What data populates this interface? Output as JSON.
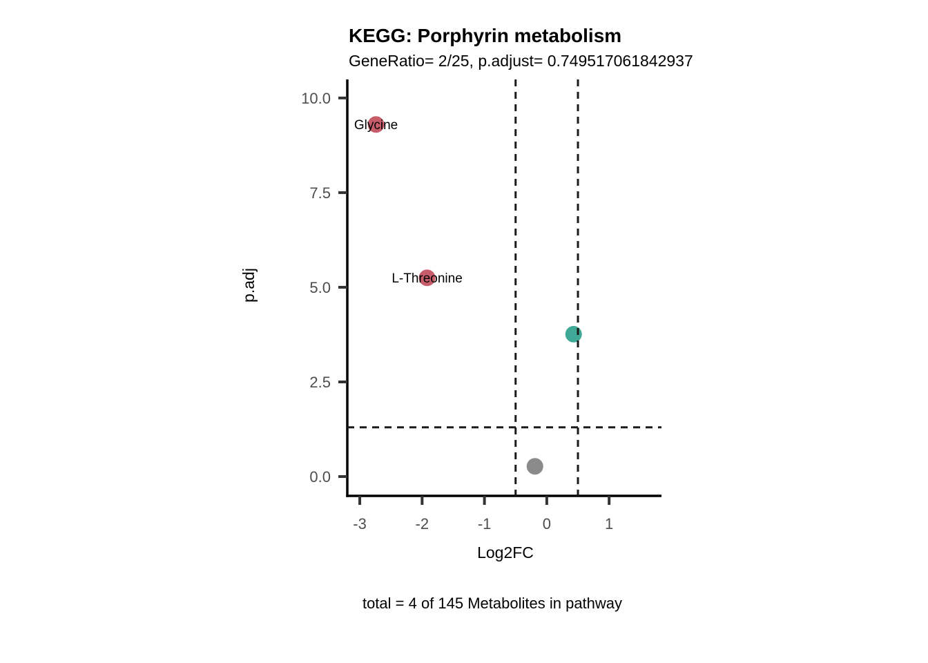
{
  "chart_data": {
    "type": "scatter",
    "title": "KEGG: Porphyrin metabolism",
    "subtitle": "GeneRatio= 2/25, p.adjust= 0.749517061842937",
    "caption": "total = 4 of 145 Metabolites in pathway",
    "xlabel": "Log2FC",
    "ylabel": "p.adj",
    "xlim": [
      -3.2,
      1.84
    ],
    "ylim": [
      -0.51,
      10.49
    ],
    "grid": false,
    "legend": "none",
    "x_ticks": {
      "values": [
        -3,
        -2,
        -1,
        0,
        1
      ],
      "labels": [
        "-3",
        "-2",
        "-1",
        "0",
        "1"
      ]
    },
    "y_ticks": {
      "values": [
        0,
        2.5,
        5,
        7.5,
        10
      ],
      "labels": [
        "0.0",
        "2.5",
        "5.0",
        "7.5",
        "10.0"
      ]
    },
    "thresholds": {
      "vlines": [
        -0.5,
        0.5
      ],
      "hline": 1.3,
      "line_style": "dashed",
      "line_color": "#1a1a1a"
    },
    "points": [
      {
        "label": "Glycine",
        "x": -2.74,
        "y": 9.3,
        "color": "#C75C6B",
        "category": "down-significant"
      },
      {
        "label": "L-Threonine",
        "x": -1.92,
        "y": 5.25,
        "color": "#C75C6B",
        "category": "down-significant"
      },
      {
        "label": "",
        "x": 0.43,
        "y": 3.76,
        "color": "#40A896",
        "category": "up-significant"
      },
      {
        "label": "",
        "x": -0.19,
        "y": 0.27,
        "color": "#8A8A8A",
        "category": "not-significant"
      }
    ],
    "colors": {
      "down_significant": "#C75C6B",
      "up_significant": "#40A896",
      "not_significant": "#8A8A8A",
      "axis_line": "#000000",
      "tick_mark": "#333333",
      "tick_label": "#4d4d4d",
      "background": "#ffffff"
    }
  }
}
